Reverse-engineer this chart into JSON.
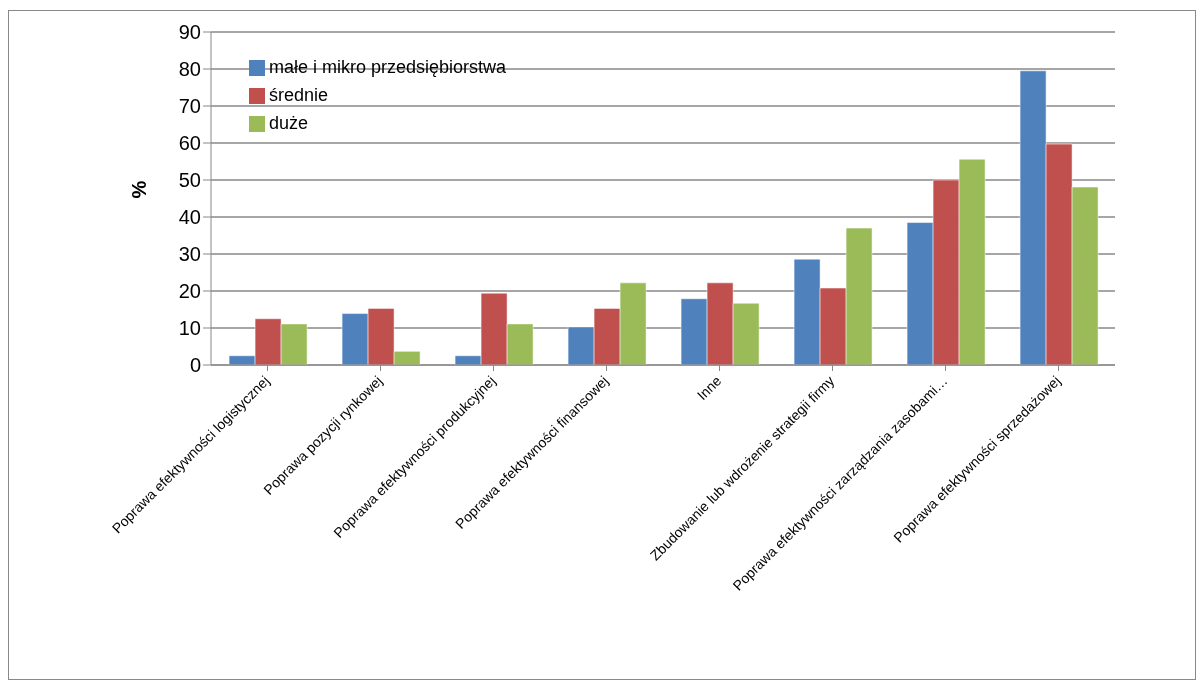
{
  "chart_data": {
    "type": "bar",
    "ylabel": "%",
    "categories": [
      "Poprawa efektywności logistycznej",
      "Poprawa pozycji rynkowej",
      "Poprawa efektywności produkcyjnej",
      "Poprawa efektywności finansowej",
      "Inne",
      "Zbudowanie lub wdrożenie strategii firmy",
      "Poprawa efektywności zarządzania zasobami…",
      "Poprawa efektywności sprzedażowej"
    ],
    "series": [
      {
        "name": "małe i mikro przedsiębiorstwa",
        "color": "#4f81bd",
        "values": [
          2.5,
          13.9,
          2.5,
          10.3,
          17.9,
          28.6,
          38.5,
          79.5
        ]
      },
      {
        "name": "średnie",
        "color": "#c0504d",
        "values": [
          12.5,
          15.3,
          19.4,
          15.3,
          22.2,
          20.8,
          50.0,
          59.7
        ]
      },
      {
        "name": "duże",
        "color": "#9bbb59",
        "values": [
          11.1,
          3.7,
          11.1,
          22.2,
          16.7,
          37.0,
          55.6,
          48.1
        ]
      }
    ],
    "ylim": [
      0,
      90
    ],
    "yticks": [
      0,
      10,
      20,
      30,
      40,
      50,
      60,
      70,
      80,
      90
    ],
    "grid": "y",
    "legend": "top left"
  }
}
